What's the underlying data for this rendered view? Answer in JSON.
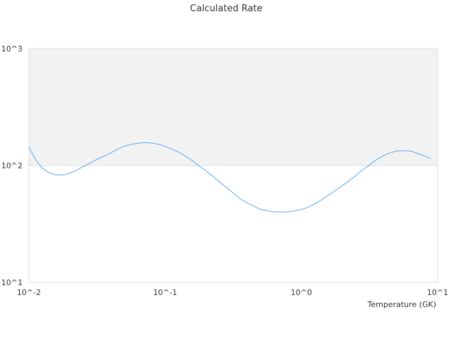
{
  "chart_data": {
    "type": "line",
    "title": "Calculated Rate",
    "xlabel": "Temperature (GK)",
    "ylabel": "",
    "x_scale": "log",
    "y_scale": "log",
    "xlim": [
      0.01,
      10
    ],
    "ylim": [
      10,
      1000
    ],
    "x_tick_values": [
      0.01,
      0.1,
      1,
      10
    ],
    "x_tick_labels": [
      "10^-2",
      "10^-1",
      "10^0",
      "10^1"
    ],
    "y_tick_values": [
      10,
      100,
      1000
    ],
    "y_tick_labels": [
      "10^1",
      "10^2",
      "10^3"
    ],
    "shaded_band": {
      "y_from": 100,
      "y_to": 1000,
      "color": "#f2f2f2"
    },
    "grid": false,
    "legend": "none",
    "series": [
      {
        "color": "#55a8f0",
        "x": [
          0.01,
          0.0112,
          0.0125,
          0.0141,
          0.0158,
          0.0178,
          0.02,
          0.0224,
          0.0251,
          0.0282,
          0.0316,
          0.0355,
          0.0398,
          0.0447,
          0.0501,
          0.0562,
          0.0631,
          0.0708,
          0.0794,
          0.0891,
          0.1,
          0.1122,
          0.1259,
          0.1413,
          0.1585,
          0.1778,
          0.1995,
          0.2239,
          0.2512,
          0.2818,
          0.3162,
          0.3548,
          0.3981,
          0.4467,
          0.5012,
          0.5623,
          0.631,
          0.7079,
          0.7943,
          0.8913,
          1.0,
          1.122,
          1.259,
          1.413,
          1.585,
          1.778,
          1.995,
          2.239,
          2.512,
          2.818,
          3.162,
          3.548,
          3.981,
          4.467,
          5.012,
          5.623,
          6.31,
          7.079,
          7.943,
          8.913
        ],
        "y": [
          144,
          112,
          95,
          87,
          83,
          83,
          86,
          91,
          98,
          105,
          113,
          120,
          128,
          138,
          146,
          151,
          155,
          157,
          156,
          152,
          146,
          138,
          130,
          120,
          110,
          99,
          90,
          81,
          72,
          65,
          58,
          52,
          48,
          45,
          42,
          41,
          40,
          40,
          40,
          41,
          42,
          44,
          47,
          51,
          56,
          61,
          67,
          74,
          82,
          92,
          101,
          112,
          121,
          128,
          133,
          134,
          133,
          127,
          121,
          115
        ]
      }
    ]
  }
}
